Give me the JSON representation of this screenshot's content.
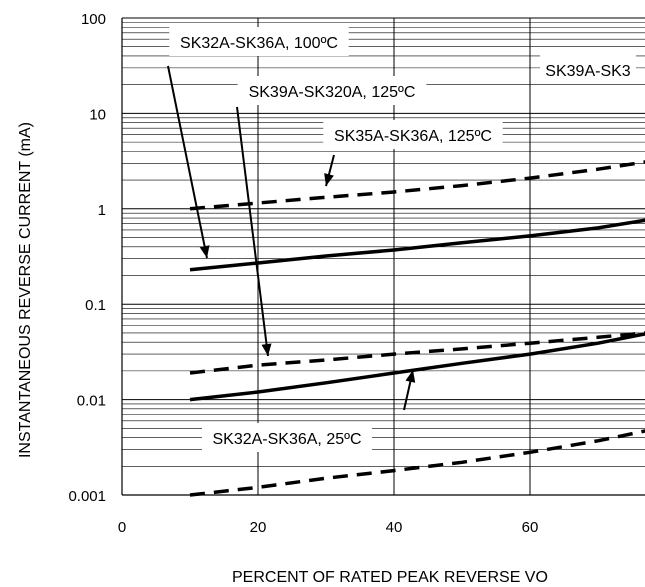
{
  "chart_data": {
    "type": "line",
    "title": "",
    "xlabel": "PERCENT OF RATED PEAK REVERSE VO",
    "ylabel": "INSTANTANEOUS REVERSE CURRENT (mA)",
    "x_ticks": [
      "0",
      "20",
      "40",
      "60"
    ],
    "y_ticks": [
      "0.001",
      "0.01",
      "0.1",
      "1",
      "10",
      "100"
    ],
    "xlim": [
      0,
      77
    ],
    "ylim": [
      0.001,
      100
    ],
    "y_scale": "log",
    "grid": true,
    "series": [
      {
        "name": "SK35A-SK36A, 125ºC",
        "style": "dashed",
        "x": [
          10,
          20,
          30,
          40,
          50,
          60,
          70,
          77
        ],
        "values": [
          1.0,
          1.15,
          1.32,
          1.5,
          1.75,
          2.1,
          2.6,
          3.1
        ]
      },
      {
        "name": "SK32A-SK36A, 100ºC",
        "style": "solid",
        "x": [
          10,
          20,
          30,
          40,
          50,
          60,
          70,
          77
        ],
        "values": [
          0.23,
          0.27,
          0.32,
          0.37,
          0.44,
          0.52,
          0.63,
          0.76
        ]
      },
      {
        "name": "SK39A-SK320A, 125ºC",
        "style": "dashed",
        "x": [
          10,
          20,
          30,
          40,
          50,
          60,
          70,
          77
        ],
        "values": [
          0.019,
          0.023,
          0.026,
          0.03,
          0.034,
          0.039,
          0.045,
          0.05
        ]
      },
      {
        "name": "SK39A-SK3",
        "style": "solid",
        "x": [
          10,
          20,
          30,
          40,
          50,
          60,
          70,
          77
        ],
        "values": [
          0.01,
          0.012,
          0.015,
          0.019,
          0.024,
          0.03,
          0.039,
          0.049
        ]
      },
      {
        "name": "SK32A-SK36A, 25ºC",
        "style": "dashed",
        "x": [
          10,
          20,
          30,
          40,
          50,
          60,
          70,
          77
        ],
        "values": [
          0.001,
          0.0012,
          0.0015,
          0.0018,
          0.0022,
          0.0028,
          0.0037,
          0.0047
        ]
      }
    ],
    "annotations": [
      "SK32A-SK36A, 100ºC",
      "SK39A-SK3",
      "SK39A-SK320A, 125ºC",
      "SK35A-SK36A, 125ºC",
      "SK32A-SK36A, 25ºC"
    ]
  }
}
